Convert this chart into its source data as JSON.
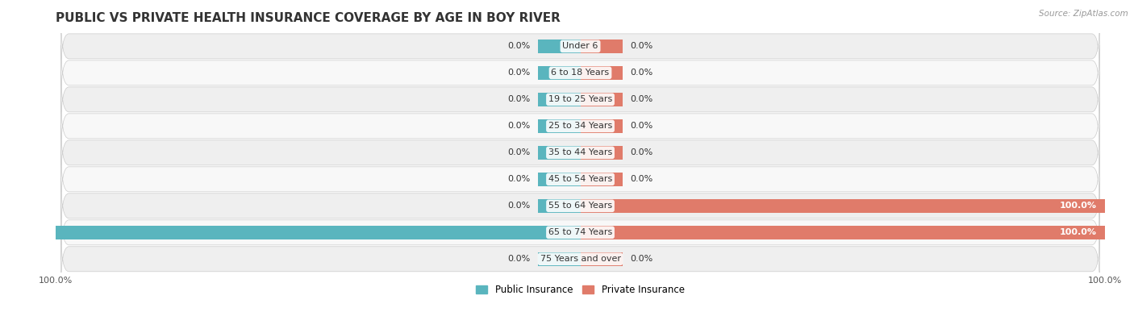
{
  "title": "PUBLIC VS PRIVATE HEALTH INSURANCE COVERAGE BY AGE IN BOY RIVER",
  "source": "Source: ZipAtlas.com",
  "categories": [
    "Under 6",
    "6 to 18 Years",
    "19 to 25 Years",
    "25 to 34 Years",
    "35 to 44 Years",
    "45 to 54 Years",
    "55 to 64 Years",
    "65 to 74 Years",
    "75 Years and over"
  ],
  "public_values": [
    0.0,
    0.0,
    0.0,
    0.0,
    0.0,
    0.0,
    0.0,
    100.0,
    0.0
  ],
  "private_values": [
    0.0,
    0.0,
    0.0,
    0.0,
    0.0,
    0.0,
    100.0,
    100.0,
    0.0
  ],
  "public_color": "#5ab5be",
  "private_color": "#e07b6a",
  "row_bg_even": "#efefef",
  "row_bg_odd": "#f8f8f8",
  "xlim": [
    -100,
    100
  ],
  "bar_height": 0.52,
  "stub_size": 8,
  "label_fontsize": 8.0,
  "title_fontsize": 11,
  "legend_fontsize": 8.5,
  "axis_label_fontsize": 8.0,
  "background_color": "#ffffff",
  "text_color": "#333333",
  "source_color": "#999999"
}
